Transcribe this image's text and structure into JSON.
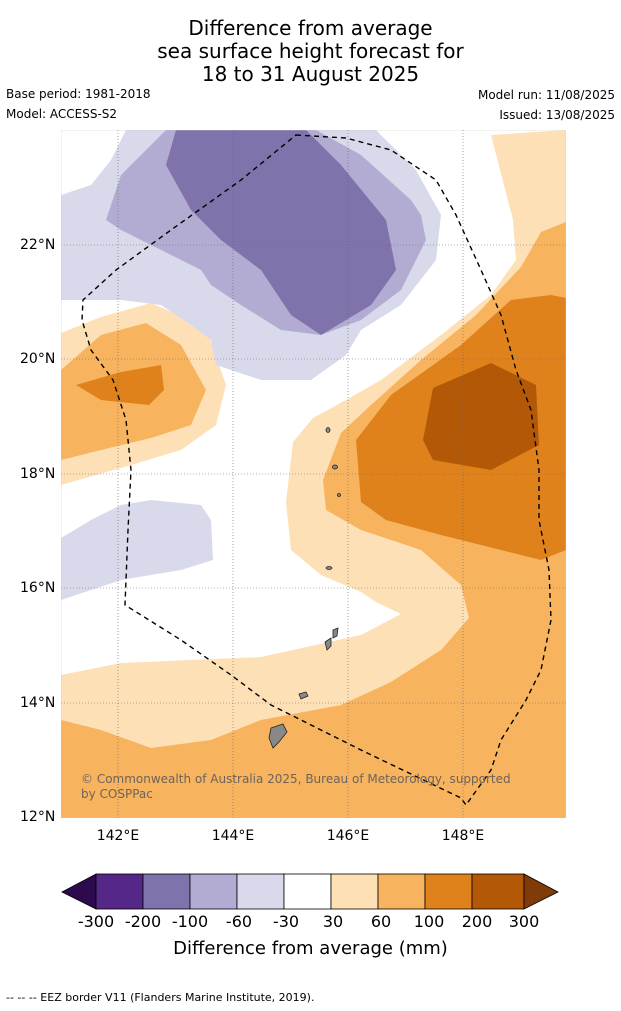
{
  "title": {
    "line1": "Difference from average",
    "line2": "sea surface height forecast for",
    "line3": "18 to 31 August 2025"
  },
  "meta": {
    "base_period": "Base period: 1981-2018",
    "model": "Model: ACCESS-S2",
    "model_run": "Model run: 11/08/2025",
    "issued": "Issued: 13/08/2025"
  },
  "map": {
    "lat_labels": [
      "22°N",
      "20°N",
      "18°N",
      "16°N",
      "14°N",
      "12°N"
    ],
    "lon_labels": [
      "142°E",
      "144°E",
      "146°E",
      "148°E"
    ],
    "copyright": "© Commonwealth of Australia 2025, Bureau of Meteorology, supported by COSPPac"
  },
  "colorbar": {
    "labels": [
      "-300",
      "-200",
      "-100",
      "-60",
      "-30",
      "30",
      "60",
      "100",
      "200",
      "300"
    ],
    "colors": [
      "#2d0a4e",
      "#542788",
      "#8073ac",
      "#b2abd2",
      "#d8daeb",
      "#ffffff",
      "#fee0b6",
      "#f7b35d",
      "#e0821b",
      "#b35806",
      "#7f3b08"
    ],
    "title": "Difference from average (mm)"
  },
  "footer": "--  --  -- EEZ border V11 (Flanders Marine Institute, 2019)."
}
